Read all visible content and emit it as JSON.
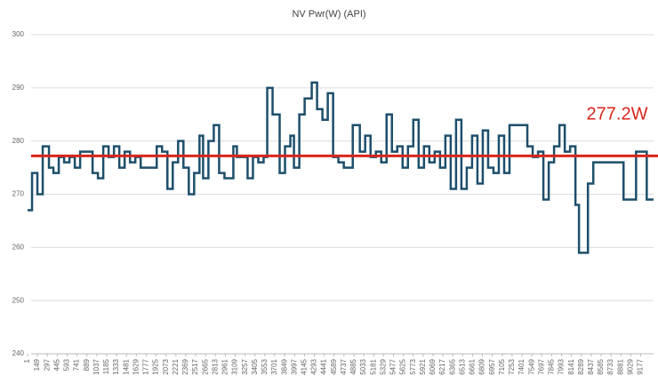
{
  "chart_data": {
    "type": "line",
    "title": "NV Pwr(W) (API)",
    "step": true,
    "grid": true,
    "x": [
      1,
      68,
      148,
      228,
      321,
      388,
      468,
      548,
      628,
      708,
      788,
      854,
      974,
      1054,
      1134,
      1214,
      1294,
      1374,
      1454,
      1534,
      1614,
      1694,
      1774,
      1934,
      2014,
      2094,
      2174,
      2254,
      2334,
      2414,
      2494,
      2574,
      2628,
      2708,
      2788,
      2868,
      2948,
      3081,
      3134,
      3294,
      3374,
      3454,
      3534,
      3588,
      3668,
      3774,
      3854,
      3934,
      3988,
      4068,
      4148,
      4254,
      4334,
      4414,
      4494,
      4574,
      4654,
      4734,
      4868,
      4974,
      5054,
      5134,
      5214,
      5294,
      5374,
      5454,
      5534,
      5614,
      5694,
      5774,
      5854,
      5934,
      6014,
      6094,
      6174,
      6254,
      6334,
      6414,
      6494,
      6574,
      6654,
      6734,
      6814,
      6894,
      6974,
      7054,
      7134,
      7214,
      7321,
      7481,
      7561,
      7641,
      7721,
      7801,
      7881,
      7961,
      8041,
      8121,
      8201,
      8254,
      8388,
      8468,
      8548,
      8921,
      9001,
      9108,
      9188,
      9268
    ],
    "series": [
      {
        "name": "NV Pwr(W) (API)",
        "color": "#1d4f6b",
        "values": [
          267,
          274,
          270,
          279,
          275,
          274,
          277,
          276,
          277,
          275,
          278,
          278,
          274,
          273,
          279,
          277,
          279,
          275,
          278,
          276,
          277,
          275,
          275,
          279,
          278,
          271,
          276,
          280,
          275,
          270,
          274,
          281,
          273,
          280,
          283,
          274,
          273,
          279,
          277,
          273,
          277,
          276,
          277,
          290,
          285,
          274,
          279,
          281,
          275,
          285,
          288,
          291,
          286,
          284,
          289,
          277,
          276,
          275,
          283,
          278,
          281,
          277,
          278,
          276,
          285,
          278,
          279,
          275,
          279,
          284,
          275,
          279,
          276,
          278,
          275,
          281,
          271,
          284,
          271,
          275,
          281,
          272,
          282,
          275,
          274,
          281,
          274,
          283,
          283,
          279,
          277,
          278,
          269,
          276,
          279,
          283,
          278,
          279,
          268,
          259,
          272,
          276,
          276,
          269,
          269,
          278,
          278,
          269
        ]
      }
    ],
    "xlim": [
      1,
      9370
    ],
    "xticks": [
      1,
      149,
      297,
      445,
      593,
      741,
      889,
      1037,
      1185,
      1333,
      1481,
      1629,
      1777,
      1925,
      2073,
      2221,
      2369,
      2517,
      2665,
      2813,
      2961,
      3109,
      3257,
      3405,
      3553,
      3701,
      3849,
      3997,
      4145,
      4293,
      4441,
      4589,
      4737,
      4885,
      5033,
      5181,
      5329,
      5477,
      5625,
      5773,
      5921,
      6069,
      6217,
      6365,
      6513,
      6661,
      6809,
      6957,
      7105,
      7253,
      7401,
      7549,
      7697,
      7845,
      7993,
      8141,
      8289,
      8437,
      8585,
      8733,
      8881,
      9029,
      9177
    ],
    "ylim": [
      240,
      300
    ],
    "yticks": [
      240,
      250,
      260,
      270,
      280,
      290,
      300
    ],
    "reference": {
      "value": 277.2,
      "label": "277.2W",
      "color": "#d9261c"
    }
  }
}
